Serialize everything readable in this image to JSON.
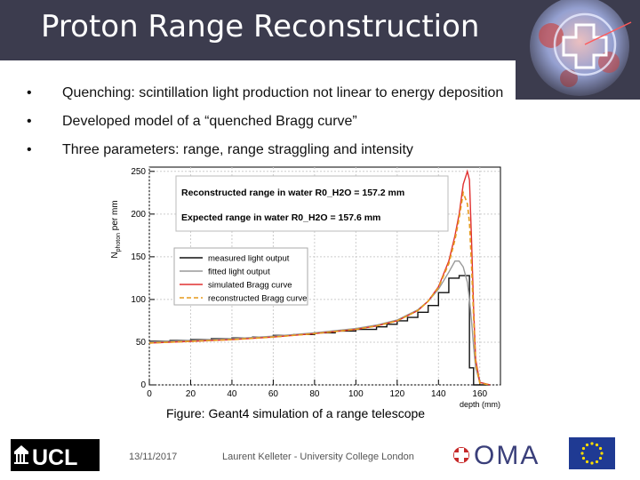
{
  "slide": {
    "title": "Proton Range Reconstruction",
    "bullets": [
      "Quenching: scintillation light production not linear to energy deposition",
      "Developed model of a “quenched Bragg curve”",
      "Three parameters: range, range straggling and intensity"
    ],
    "caption": "Figure: Geant4 simulation of a range telescope",
    "date": "13/11/2017",
    "author": "Laurent Kelleter - University College London",
    "logos": {
      "ucl": "UCL",
      "oma": "OMA"
    }
  },
  "chart_data": {
    "type": "line",
    "ylabel": "N",
    "ylabel_sub": "photon",
    "ylabel_tail": " per mm",
    "xlabel": "depth (mm)",
    "xlim": [
      0,
      170
    ],
    "ylim": [
      0,
      255
    ],
    "xticks": [
      0,
      20,
      40,
      60,
      80,
      100,
      120,
      140,
      160
    ],
    "yticks": [
      0,
      50,
      100,
      150,
      200,
      250
    ],
    "annotations": [
      "Reconstructed range in water R0_H2O = 157.2 mm",
      "Expected range in water R0_H2O = 157.6 mm"
    ],
    "legend_position": "middle-left",
    "series": [
      {
        "name": "measured light output",
        "color": "#111111",
        "style": "step",
        "x": [
          0,
          10,
          20,
          30,
          40,
          50,
          60,
          70,
          80,
          90,
          100,
          110,
          115,
          120,
          125,
          130,
          135,
          140,
          145,
          150,
          155,
          157,
          165
        ],
        "y": [
          51,
          52,
          53,
          54,
          55,
          56,
          58,
          59,
          61,
          63,
          65,
          68,
          71,
          75,
          79,
          85,
          93,
          108,
          125,
          128,
          20,
          0,
          0
        ]
      },
      {
        "name": "fitted light output",
        "color": "#999999",
        "style": "line",
        "x": [
          0,
          20,
          40,
          60,
          80,
          100,
          110,
          120,
          130,
          135,
          140,
          145,
          148,
          150,
          152,
          154,
          155,
          156,
          157,
          158,
          160,
          165
        ],
        "y": [
          50,
          52,
          54,
          57,
          61,
          66,
          70,
          76,
          88,
          98,
          112,
          132,
          145,
          145,
          138,
          120,
          100,
          75,
          45,
          20,
          3,
          0
        ]
      },
      {
        "name": "simulated Bragg curve",
        "color": "#e03030",
        "style": "line",
        "x": [
          0,
          20,
          40,
          60,
          80,
          100,
          110,
          120,
          130,
          135,
          140,
          145,
          148,
          150,
          152,
          154,
          155,
          156,
          157,
          158,
          160,
          165
        ],
        "y": [
          49,
          51,
          53,
          56,
          60,
          65,
          69,
          75,
          87,
          98,
          115,
          145,
          175,
          200,
          235,
          250,
          240,
          170,
          90,
          30,
          3,
          0
        ]
      },
      {
        "name": "reconstructed Bragg curve",
        "color": "#e69a1c",
        "style": "dashed",
        "x": [
          0,
          20,
          40,
          60,
          80,
          100,
          110,
          120,
          130,
          135,
          140,
          145,
          148,
          150,
          152,
          154,
          155,
          156,
          157,
          158,
          160,
          165
        ],
        "y": [
          49,
          51,
          53,
          56,
          60,
          65,
          69,
          75,
          87,
          98,
          114,
          142,
          170,
          195,
          225,
          212,
          190,
          140,
          80,
          25,
          2,
          0
        ]
      }
    ]
  }
}
